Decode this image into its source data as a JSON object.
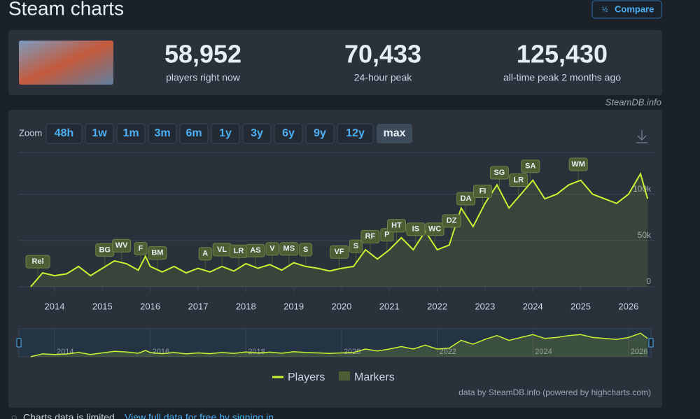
{
  "header": {
    "title": "Steam charts",
    "compare": "Compare"
  },
  "stats": [
    {
      "value": "58,952",
      "label": "players right now"
    },
    {
      "value": "70,433",
      "label": "24-hour peak"
    },
    {
      "value": "125,430",
      "label": "all-time peak 2 months ago"
    }
  ],
  "credit": "SteamDB.info",
  "zoom": {
    "label": "Zoom",
    "buttons": [
      "48h",
      "1w",
      "1m",
      "3m",
      "6m",
      "1y",
      "3y",
      "6y",
      "9y",
      "12y",
      "max"
    ]
  },
  "chart_data": {
    "type": "line",
    "x": [
      2013.5,
      2013.75,
      2014.0,
      2014.25,
      2014.5,
      2014.75,
      2015.0,
      2015.25,
      2015.5,
      2015.75,
      2015.9,
      2016.0,
      2016.25,
      2016.5,
      2016.75,
      2017.0,
      2017.25,
      2017.5,
      2017.75,
      2018.0,
      2018.25,
      2018.5,
      2018.75,
      2019.0,
      2019.25,
      2019.5,
      2019.75,
      2020.0,
      2020.25,
      2020.5,
      2020.75,
      2021.0,
      2021.25,
      2021.5,
      2021.75,
      2022.0,
      2022.25,
      2022.5,
      2022.75,
      2023.0,
      2023.25,
      2023.5,
      2023.75,
      2024.0,
      2024.25,
      2024.5,
      2024.75,
      2025.0,
      2025.25,
      2025.5,
      2025.75,
      2026.0,
      2026.25,
      2026.4
    ],
    "series": [
      {
        "name": "Players",
        "color": "#c6f432",
        "values": [
          0,
          15000,
          12000,
          14000,
          22000,
          12000,
          20000,
          28000,
          25000,
          18000,
          33000,
          22000,
          16000,
          22000,
          15000,
          20000,
          16000,
          22000,
          17000,
          25000,
          20000,
          24000,
          18000,
          26000,
          22000,
          20000,
          17000,
          20000,
          22000,
          40000,
          30000,
          40000,
          53000,
          40000,
          60000,
          40000,
          45000,
          85000,
          65000,
          90000,
          110000,
          85000,
          100000,
          115000,
          95000,
          100000,
          110000,
          115000,
          100000,
          95000,
          90000,
          100000,
          122000,
          95000
        ]
      }
    ],
    "markers_name": "Markers",
    "markers_color": "#4b5e34",
    "markers": [
      {
        "label": "Rel",
        "x": 2013.65
      },
      {
        "label": "BG",
        "x": 2015.05
      },
      {
        "label": "WV",
        "x": 2015.4
      },
      {
        "label": "F",
        "x": 2015.8
      },
      {
        "label": "BM",
        "x": 2016.15
      },
      {
        "label": "A",
        "x": 2017.15
      },
      {
        "label": "VL",
        "x": 2017.5
      },
      {
        "label": "LR",
        "x": 2017.85
      },
      {
        "label": "AS",
        "x": 2018.2
      },
      {
        "label": "V",
        "x": 2018.55
      },
      {
        "label": "MS",
        "x": 2018.9
      },
      {
        "label": "S",
        "x": 2019.25
      },
      {
        "label": "VF",
        "x": 2019.95
      },
      {
        "label": "S",
        "x": 2020.3
      },
      {
        "label": "RF",
        "x": 2020.6
      },
      {
        "label": "P",
        "x": 2020.95
      },
      {
        "label": "HT",
        "x": 2021.15
      },
      {
        "label": "IS",
        "x": 2021.55
      },
      {
        "label": "WC",
        "x": 2021.95
      },
      {
        "label": "DZ",
        "x": 2022.3
      },
      {
        "label": "DA",
        "x": 2022.6
      },
      {
        "label": "FI",
        "x": 2022.95
      },
      {
        "label": "SG",
        "x": 2023.3
      },
      {
        "label": "LR",
        "x": 2023.7
      },
      {
        "label": "SA",
        "x": 2023.95
      },
      {
        "label": "WM",
        "x": 2024.95
      }
    ],
    "xlim": [
      2013.4,
      2026.47
    ],
    "xticks": [
      2014,
      2015,
      2016,
      2017,
      2018,
      2019,
      2020,
      2021,
      2022,
      2023,
      2024,
      2025,
      2026
    ],
    "ylim": [
      0,
      145000
    ],
    "yticks": [
      0,
      {
        "value": 50000,
        "label": "50k"
      },
      {
        "value": 100000,
        "label": "100k"
      }
    ],
    "navigator_xticks": [
      2014,
      2016,
      2018,
      2020,
      2022,
      2024,
      2026
    ],
    "grid": true,
    "source": "data by SteamDB.info (powered by highcharts.com)"
  },
  "footer": {
    "text": "Charts data is limited.",
    "link": "View full data for free by signing in."
  }
}
